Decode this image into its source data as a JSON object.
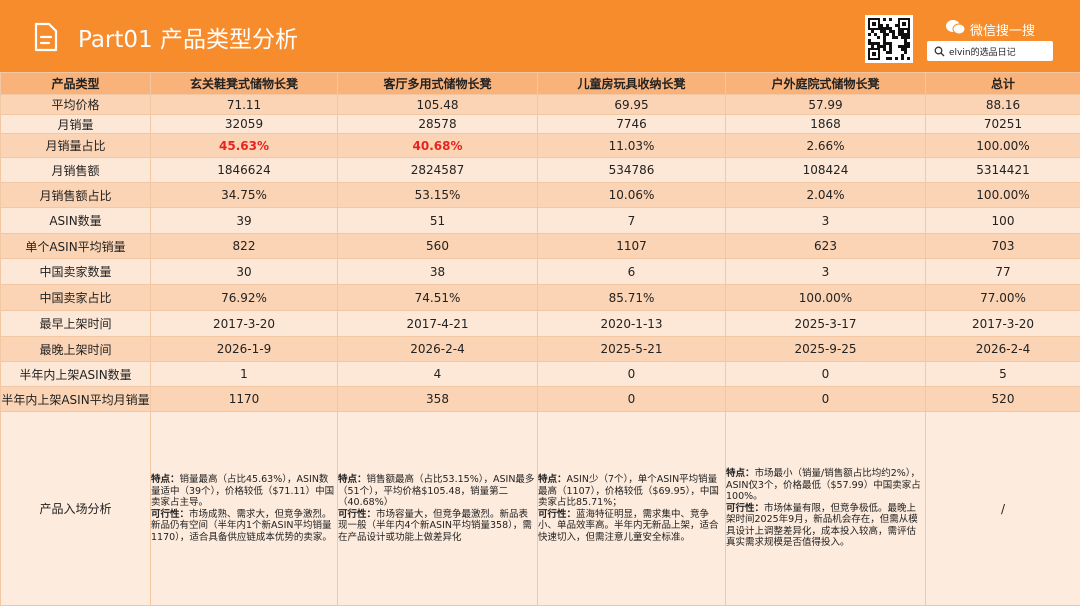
{
  "header": {
    "title": "Part01 产品类型分析",
    "wechat": "微信搜一搜",
    "search": "elvin的选品日记"
  },
  "table": {
    "columns": [
      "产品类型",
      "玄关鞋凳式储物长凳",
      "客厅多用式储物长凳",
      "儿童房玩具收纳长凳",
      "户外庭院式储物长凳",
      "总计"
    ],
    "rows": [
      [
        "平均价格",
        "71.11",
        "105.48",
        "69.95",
        "57.99",
        "88.16"
      ],
      [
        "月销量",
        "32059",
        "28578",
        "7746",
        "1868",
        "70251"
      ],
      [
        "月销量占比",
        "45.63%",
        "40.68%",
        "11.03%",
        "2.66%",
        "100.00%"
      ],
      [
        "月销售额",
        "1846624",
        "2824587",
        "534786",
        "108424",
        "5314421"
      ],
      [
        "月销售额占比",
        "34.75%",
        "53.15%",
        "10.06%",
        "2.04%",
        "100.00%"
      ],
      [
        "ASIN数量",
        "39",
        "51",
        "7",
        "3",
        "100"
      ],
      [
        "单个ASIN平均销量",
        "822",
        "560",
        "1107",
        "623",
        "703"
      ],
      [
        "中国卖家数量",
        "30",
        "38",
        "6",
        "3",
        "77"
      ],
      [
        "中国卖家占比",
        "76.92%",
        "74.51%",
        "85.71%",
        "100.00%",
        "77.00%"
      ],
      [
        "最早上架时间",
        "2017-3-20",
        "2017-4-21",
        "2020-1-13",
        "2025-3-17",
        "2017-3-20"
      ],
      [
        "最晚上架时间",
        "2026-1-9",
        "2026-2-4",
        "2025-5-21",
        "2025-9-25",
        "2026-2-4"
      ],
      [
        "半年内上架ASIN数量",
        "1",
        "4",
        "0",
        "0",
        "5"
      ],
      [
        "半年内上架ASIN平均月销量",
        "1170",
        "358",
        "0",
        "0",
        "520"
      ]
    ],
    "analysis": {
      "label": "产品入场分析",
      "cells": [
        {
          "features_label": "特点：",
          "features": "销量最高（占比45.63%），ASIN数量适中（39个），价格较低（$71.11）中国卖家占主导。",
          "feasibility_label": "可行性：",
          "feasibility": "市场成熟、需求大，但竞争激烈。新品仍有空间（半年内1个新ASIN平均销量1170），适合具备供应链成本优势的卖家。"
        },
        {
          "features_label": "特点：",
          "features": "销售额最高（占比53.15%），ASIN最多（51个），平均价格$105.48，销量第二（40.68%）",
          "feasibility_label": "可行性：",
          "feasibility": "市场容量大，但竞争最激烈。新品表现一般（半年内4个新ASIN平均销量358），需在产品设计或功能上做差异化"
        },
        {
          "features_label": "特点：",
          "features": "ASIN少（7个），单个ASIN平均销量最高（1107），价格较低（$69.95），中国卖家占比85.71%；",
          "feasibility_label": "可行性：",
          "feasibility": "蓝海特征明显，需求集中、竞争小、单品效率高。半年内无新品上架，适合快速切入，但需注意儿童安全标准。"
        },
        {
          "features_label": "特点：",
          "features": "市场最小（销量/销售额占比均约2%），ASIN仅3个，价格最低（$57.99）中国卖家占100%。",
          "feasibility_label": "可行性：",
          "feasibility": "市场体量有限，但竞争极低。最晚上架时间2025年9月，新品机会存在，但需从模具设计上调整差异化，成本投入较高，需评估真实需求规模是否值得投入。"
        },
        {
          "text": "/"
        }
      ]
    }
  }
}
